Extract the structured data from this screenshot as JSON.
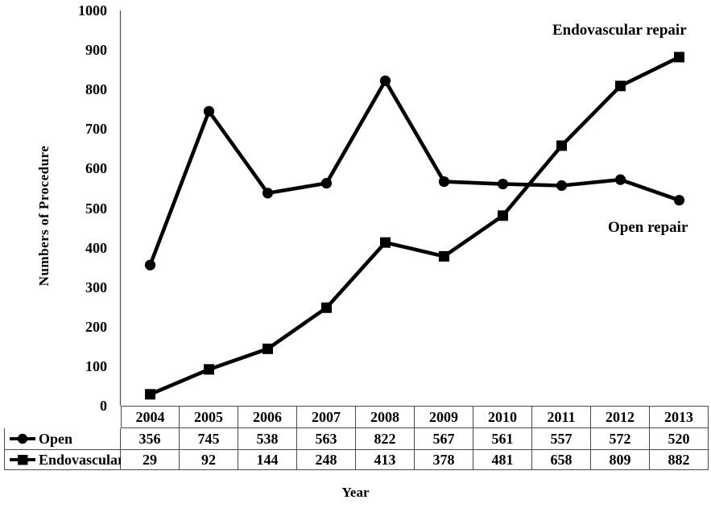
{
  "chart_data": {
    "type": "line",
    "title": "",
    "xlabel": "Year",
    "ylabel": "Numbers of Procedure",
    "ylim": [
      0,
      1000
    ],
    "ytick_step": 100,
    "grid": false,
    "legend_position": "table-left",
    "categories": [
      "2004",
      "2005",
      "2006",
      "2007",
      "2008",
      "2009",
      "2010",
      "2011",
      "2012",
      "2013"
    ],
    "series": [
      {
        "name": "Open",
        "marker": "circle",
        "color": "#000000",
        "values": [
          356,
          745,
          538,
          563,
          822,
          567,
          561,
          557,
          572,
          520
        ]
      },
      {
        "name": "Endovascular",
        "marker": "square",
        "color": "#000000",
        "values": [
          29,
          92,
          144,
          248,
          413,
          378,
          481,
          658,
          809,
          882
        ]
      }
    ],
    "annotations": [
      {
        "text": "Endovascular repair",
        "series": "Endovascular"
      },
      {
        "text": "Open repair",
        "series": "Open"
      }
    ],
    "axis_color": "#555555",
    "table_border_color": "#4a4a4a"
  }
}
